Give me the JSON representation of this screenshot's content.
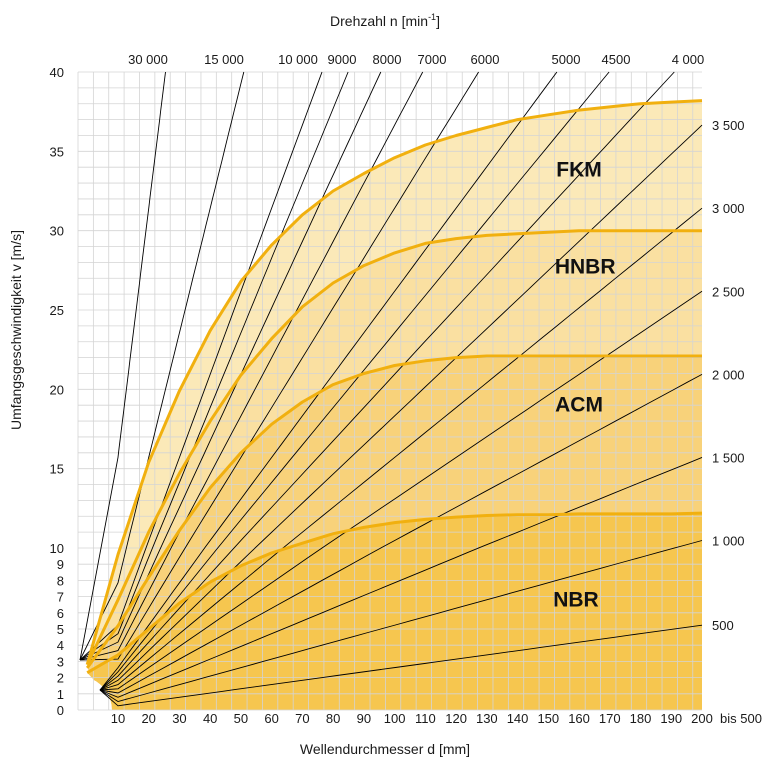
{
  "chart_data": {
    "type": "area",
    "title": "",
    "top_axis_title": "Drehzahl n [min",
    "top_axis_title_sup": "-1",
    "top_axis_title_end": "]",
    "xlabel": "Wellendurchmesser d [mm]",
    "ylabel": "Umfangsgeschwindigkeit v [m/s]",
    "xlim": [
      0,
      200
    ],
    "ylim": [
      0,
      40
    ],
    "x_ticks": [
      10,
      20,
      30,
      40,
      50,
      60,
      70,
      80,
      90,
      100,
      110,
      120,
      130,
      140,
      150,
      160,
      170,
      180,
      190,
      200
    ],
    "x_ticks_text": [
      "10",
      "20",
      "30",
      "40",
      "50",
      "60",
      "70",
      "80",
      "90",
      "100",
      "110",
      "120",
      "130",
      "140",
      "150",
      "160",
      "170",
      "180",
      "190",
      "200"
    ],
    "x_extra_tick": "bis 500",
    "y_ticks_upper": [
      15,
      20,
      25,
      30,
      35,
      40
    ],
    "y_ticks_upper_text": [
      "15",
      "20",
      "25",
      "30",
      "35",
      "40"
    ],
    "y_ticks_lower": [
      0,
      1,
      2,
      3,
      4,
      5,
      6,
      7,
      8,
      9,
      10
    ],
    "y_ticks_lower_text": [
      "0",
      "1",
      "2",
      "3",
      "4",
      "5",
      "6",
      "7",
      "8",
      "9",
      "10"
    ],
    "right_labels": [
      {
        "rpm": 500,
        "text": "500"
      },
      {
        "rpm": 1000,
        "text": "1 000"
      },
      {
        "rpm": 1500,
        "text": "1 500"
      },
      {
        "rpm": 2000,
        "text": "2 000"
      },
      {
        "rpm": 2500,
        "text": "2 500"
      },
      {
        "rpm": 3000,
        "text": "3 000"
      },
      {
        "rpm": 3500,
        "text": "3 500"
      }
    ],
    "top_labels": [
      {
        "rpm": 30000,
        "text": "30 000"
      },
      {
        "rpm": 15000,
        "text": "15 000"
      },
      {
        "rpm": 10000,
        "text": "10 000"
      },
      {
        "rpm": 9000,
        "text": "9000"
      },
      {
        "rpm": 8000,
        "text": "8000"
      },
      {
        "rpm": 7000,
        "text": "7000"
      },
      {
        "rpm": 6000,
        "text": "6000"
      },
      {
        "rpm": 5000,
        "text": "5000"
      },
      {
        "rpm": 4500,
        "text": "4500"
      },
      {
        "rpm": 4000,
        "text": "4 000"
      }
    ],
    "rpm_lines": [
      30000,
      15000,
      10000,
      9000,
      8000,
      7000,
      6000,
      5000,
      4500,
      4000,
      3500,
      3000,
      2500,
      2000,
      1500,
      1000,
      500
    ],
    "series": [
      {
        "name": "FKM",
        "x": [
          0,
          10,
          20,
          30,
          40,
          50,
          60,
          70,
          80,
          90,
          100,
          110,
          120,
          130,
          140,
          150,
          160,
          170,
          180,
          190,
          200
        ],
        "y": [
          2.8,
          9.6,
          15.4,
          19.9,
          23.7,
          26.8,
          29.1,
          31.0,
          32.5,
          33.6,
          34.6,
          35.4,
          36.0,
          36.5,
          37.0,
          37.3,
          37.6,
          37.8,
          38.0,
          38.1,
          38.2
        ]
      },
      {
        "name": "HNBR",
        "x": [
          0,
          10,
          20,
          30,
          40,
          50,
          60,
          70,
          80,
          90,
          100,
          110,
          120,
          130,
          140,
          150,
          160,
          170,
          180,
          190,
          200
        ],
        "y": [
          2.8,
          6.8,
          11.0,
          14.7,
          18.0,
          20.9,
          23.2,
          25.2,
          26.7,
          27.8,
          28.6,
          29.2,
          29.5,
          29.7,
          29.8,
          29.9,
          30.0,
          30.0,
          30.0,
          30.0,
          30.0
        ]
      },
      {
        "name": "ACM",
        "x": [
          0,
          10,
          20,
          30,
          40,
          50,
          60,
          70,
          80,
          90,
          100,
          110,
          120,
          130,
          140,
          150,
          160,
          170,
          180,
          190,
          200
        ],
        "y": [
          2.6,
          5.2,
          8.2,
          11.1,
          13.8,
          16.0,
          17.8,
          19.2,
          20.3,
          21.0,
          21.5,
          21.8,
          22.0,
          22.1,
          22.1,
          22.1,
          22.1,
          22.1,
          22.1,
          22.1,
          22.1
        ]
      },
      {
        "name": "NBR",
        "x": [
          0,
          10,
          20,
          30,
          40,
          50,
          60,
          70,
          80,
          90,
          100,
          110,
          120,
          130,
          140,
          150,
          160,
          170,
          180,
          190,
          200
        ],
        "y": [
          2.3,
          3.4,
          5.0,
          6.6,
          7.9,
          8.9,
          9.7,
          10.3,
          10.9,
          11.3,
          11.6,
          11.8,
          11.95,
          12.05,
          12.1,
          12.1,
          12.15,
          12.15,
          12.15,
          12.15,
          12.2
        ]
      }
    ],
    "region_labels": [
      {
        "text": "FKM",
        "x": 160,
        "y": 33.4
      },
      {
        "text": "HNBR",
        "x": 162,
        "y": 27.3
      },
      {
        "text": "ACM",
        "x": 160,
        "y": 18.6
      },
      {
        "text": "NBR",
        "x": 159,
        "y": 6.4
      }
    ],
    "colors": {
      "fkm_fill": "#fbe9b8",
      "hnbr_fill": "#fae0a1",
      "acm_fill": "#f8d27a",
      "nbr_fill": "#f6c64f",
      "curve_line": "#f1b00f",
      "grid": "#d4d4d4",
      "rpm_line": "#000000"
    },
    "grid": true
  }
}
